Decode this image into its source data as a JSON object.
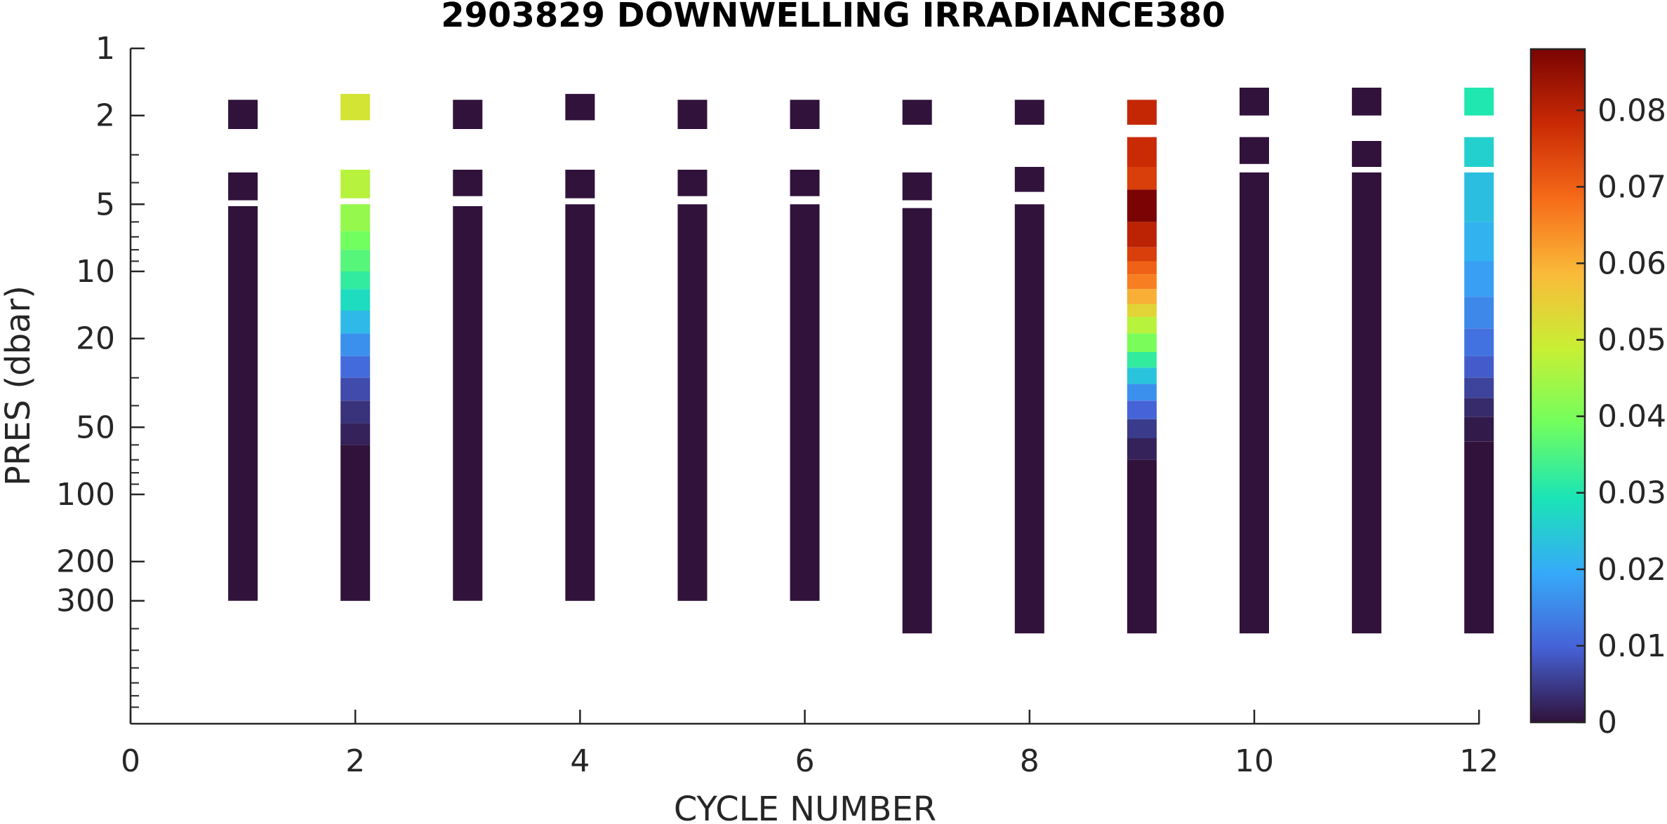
{
  "chart_data": {
    "type": "heatmap",
    "title": "2903829  DOWNWELLING IRRADIANCE380",
    "xlabel": "CYCLE NUMBER",
    "ylabel": "PRES (dbar)",
    "xlim": [
      0,
      12
    ],
    "ylim": [
      1,
      1000
    ],
    "y_scale": "log",
    "y_reversed": true,
    "x_ticks": [
      0,
      2,
      4,
      6,
      8,
      10,
      12
    ],
    "x_tick_labels": [
      "0",
      "2",
      "4",
      "6",
      "8",
      "10",
      "12"
    ],
    "y_ticks": [
      1,
      2,
      5,
      10,
      20,
      50,
      100,
      200,
      300
    ],
    "y_tick_labels": [
      "1",
      "2",
      "5",
      "10",
      "20",
      "50",
      "100",
      "200",
      "300"
    ],
    "colorbar": {
      "min": 0,
      "max": 0.088,
      "ticks": [
        0,
        0.01,
        0.02,
        0.03,
        0.04,
        0.05,
        0.06,
        0.07,
        0.08
      ],
      "tick_labels": [
        "0",
        "0.01",
        "0.02",
        "0.03",
        "0.04",
        "0.05",
        "0.06",
        "0.07",
        "0.08"
      ],
      "colormap": "turbo",
      "colors": [
        "#30123b",
        "#4662d7",
        "#36aaf9",
        "#1ae4b6",
        "#72fe5e",
        "#c8ef34",
        "#faba39",
        "#f66b19",
        "#ca2a04",
        "#7a0403"
      ]
    },
    "grid": false,
    "cycles": [
      {
        "cycle": 1,
        "segments": [
          {
            "p_top": 1.7,
            "p_bot": 2.3,
            "value": 0
          },
          {
            "p_top": 3.6,
            "p_bot": 4.8,
            "value": 0
          },
          {
            "p_top": 5.1,
            "p_bot": 300,
            "value": 0
          }
        ]
      },
      {
        "cycle": 2,
        "segments": [
          {
            "p_top": 1.6,
            "p_bot": 2.1,
            "value": 0.051
          },
          {
            "p_top": 3.5,
            "p_bot": 4.7,
            "value": 0.047
          },
          {
            "p_top": 5.0,
            "p_bot": 6.6,
            "value": 0.043
          },
          {
            "p_top": 6.6,
            "p_bot": 8.0,
            "value": 0.039
          },
          {
            "p_top": 8.0,
            "p_bot": 10,
            "value": 0.036
          },
          {
            "p_top": 10,
            "p_bot": 12,
            "value": 0.032
          },
          {
            "p_top": 12,
            "p_bot": 15,
            "value": 0.028
          },
          {
            "p_top": 15,
            "p_bot": 19,
            "value": 0.022
          },
          {
            "p_top": 19,
            "p_bot": 24,
            "value": 0.016
          },
          {
            "p_top": 24,
            "p_bot": 30,
            "value": 0.011
          },
          {
            "p_top": 30,
            "p_bot": 38,
            "value": 0.007
          },
          {
            "p_top": 38,
            "p_bot": 48,
            "value": 0.004
          },
          {
            "p_top": 48,
            "p_bot": 60,
            "value": 0.002
          },
          {
            "p_top": 60,
            "p_bot": 300,
            "value": 0
          }
        ]
      },
      {
        "cycle": 3,
        "segments": [
          {
            "p_top": 1.7,
            "p_bot": 2.3,
            "value": 0
          },
          {
            "p_top": 3.5,
            "p_bot": 4.6,
            "value": 0
          },
          {
            "p_top": 5.1,
            "p_bot": 300,
            "value": 0
          }
        ]
      },
      {
        "cycle": 4,
        "segments": [
          {
            "p_top": 1.6,
            "p_bot": 2.1,
            "value": 0
          },
          {
            "p_top": 3.5,
            "p_bot": 4.7,
            "value": 0
          },
          {
            "p_top": 5.0,
            "p_bot": 300,
            "value": 0
          }
        ]
      },
      {
        "cycle": 5,
        "segments": [
          {
            "p_top": 1.7,
            "p_bot": 2.3,
            "value": 0
          },
          {
            "p_top": 3.5,
            "p_bot": 4.6,
            "value": 0
          },
          {
            "p_top": 5.0,
            "p_bot": 300,
            "value": 0
          }
        ]
      },
      {
        "cycle": 6,
        "segments": [
          {
            "p_top": 1.7,
            "p_bot": 2.3,
            "value": 0
          },
          {
            "p_top": 3.5,
            "p_bot": 4.6,
            "value": 0
          },
          {
            "p_top": 5.0,
            "p_bot": 300,
            "value": 0
          }
        ]
      },
      {
        "cycle": 7,
        "segments": [
          {
            "p_top": 1.7,
            "p_bot": 2.2,
            "value": 0
          },
          {
            "p_top": 3.6,
            "p_bot": 4.8,
            "value": 0
          },
          {
            "p_top": 5.2,
            "p_bot": 420,
            "value": 0
          }
        ]
      },
      {
        "cycle": 8,
        "segments": [
          {
            "p_top": 1.7,
            "p_bot": 2.2,
            "value": 0
          },
          {
            "p_top": 3.4,
            "p_bot": 4.4,
            "value": 0
          },
          {
            "p_top": 5.0,
            "p_bot": 420,
            "value": 0
          }
        ]
      },
      {
        "cycle": 9,
        "segments": [
          {
            "p_top": 1.7,
            "p_bot": 2.2,
            "value": 0.079
          },
          {
            "p_top": 2.5,
            "p_bot": 3.4,
            "value": 0.078
          },
          {
            "p_top": 3.4,
            "p_bot": 4.3,
            "value": 0.075
          },
          {
            "p_top": 4.3,
            "p_bot": 6.0,
            "value": 0.088
          },
          {
            "p_top": 6.0,
            "p_bot": 7.8,
            "value": 0.08
          },
          {
            "p_top": 7.8,
            "p_bot": 9.0,
            "value": 0.075
          },
          {
            "p_top": 9.0,
            "p_bot": 10.3,
            "value": 0.07
          },
          {
            "p_top": 10.3,
            "p_bot": 12,
            "value": 0.066
          },
          {
            "p_top": 12,
            "p_bot": 14,
            "value": 0.06
          },
          {
            "p_top": 14,
            "p_bot": 16,
            "value": 0.054
          },
          {
            "p_top": 16,
            "p_bot": 19,
            "value": 0.047
          },
          {
            "p_top": 19,
            "p_bot": 23,
            "value": 0.04
          },
          {
            "p_top": 23,
            "p_bot": 27,
            "value": 0.032
          },
          {
            "p_top": 27,
            "p_bot": 32,
            "value": 0.024
          },
          {
            "p_top": 32,
            "p_bot": 38,
            "value": 0.016
          },
          {
            "p_top": 38,
            "p_bot": 46,
            "value": 0.01
          },
          {
            "p_top": 46,
            "p_bot": 56,
            "value": 0.005
          },
          {
            "p_top": 56,
            "p_bot": 70,
            "value": 0.002
          },
          {
            "p_top": 70,
            "p_bot": 420,
            "value": 0
          }
        ]
      },
      {
        "cycle": 10,
        "segments": [
          {
            "p_top": 1.5,
            "p_bot": 2.0,
            "value": 0
          },
          {
            "p_top": 2.5,
            "p_bot": 3.3,
            "value": 0
          },
          {
            "p_top": 3.6,
            "p_bot": 420,
            "value": 0
          }
        ]
      },
      {
        "cycle": 11,
        "segments": [
          {
            "p_top": 1.5,
            "p_bot": 2.0,
            "value": 0
          },
          {
            "p_top": 2.6,
            "p_bot": 3.4,
            "value": 0
          },
          {
            "p_top": 3.6,
            "p_bot": 420,
            "value": 0
          }
        ]
      },
      {
        "cycle": 12,
        "segments": [
          {
            "p_top": 1.5,
            "p_bot": 2.0,
            "value": 0.03
          },
          {
            "p_top": 2.5,
            "p_bot": 3.4,
            "value": 0.026
          },
          {
            "p_top": 3.6,
            "p_bot": 6.0,
            "value": 0.023
          },
          {
            "p_top": 6.0,
            "p_bot": 9,
            "value": 0.021
          },
          {
            "p_top": 9,
            "p_bot": 13,
            "value": 0.018
          },
          {
            "p_top": 13,
            "p_bot": 18,
            "value": 0.015
          },
          {
            "p_top": 18,
            "p_bot": 24,
            "value": 0.012
          },
          {
            "p_top": 24,
            "p_bot": 30,
            "value": 0.009
          },
          {
            "p_top": 30,
            "p_bot": 37,
            "value": 0.006
          },
          {
            "p_top": 37,
            "p_bot": 45,
            "value": 0.003
          },
          {
            "p_top": 45,
            "p_bot": 58,
            "value": 0.001
          },
          {
            "p_top": 58,
            "p_bot": 420,
            "value": 0
          }
        ]
      }
    ]
  }
}
